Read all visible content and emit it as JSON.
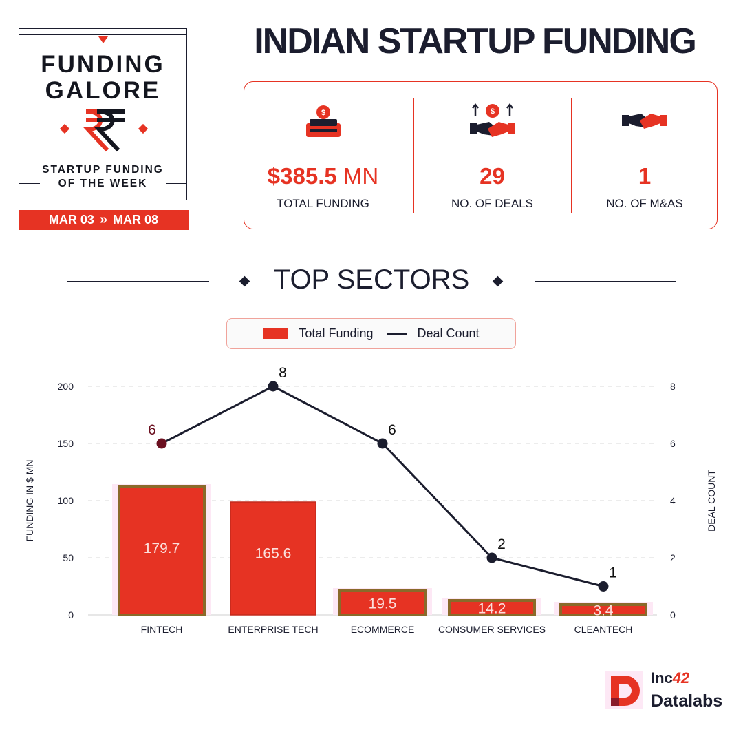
{
  "badge": {
    "title_line1": "FUNDING",
    "title_line2": "GALORE",
    "subtitle_line1": "STARTUP FUNDING",
    "subtitle_line2": "OF THE WEEK",
    "date_from": "MAR 03",
    "date_to": "MAR 08",
    "date_separator": "»"
  },
  "header": {
    "title": "INDIAN STARTUP FUNDING"
  },
  "stats": [
    {
      "value": "$385.5",
      "unit": " MN",
      "label": "TOTAL FUNDING",
      "icon": "money-box-icon"
    },
    {
      "value": "29",
      "unit": "",
      "label": "NO. OF DEALS",
      "icon": "deals-handshake-icon"
    },
    {
      "value": "1",
      "unit": "",
      "label": "NO. OF M&AS",
      "icon": "handshake-icon"
    }
  ],
  "section": {
    "title": "TOP SECTORS"
  },
  "legend": {
    "bar_label": "Total Funding",
    "line_label": "Deal Count"
  },
  "colors": {
    "accent": "#e63323",
    "dark": "#1b1d2e",
    "bar_border": "#8a6a2a"
  },
  "chart_data": {
    "type": "bar",
    "categories": [
      "FINTECH",
      "ENTERPRISE TECH",
      "ECOMMERCE",
      "CONSUMER SERVICES",
      "CLEANTECH"
    ],
    "series": [
      {
        "name": "Total Funding",
        "type": "bar",
        "axis": "left",
        "values": [
          179.7,
          165.6,
          19.5,
          14.2,
          3.4
        ],
        "display_heights": [
          186,
          164,
          35,
          21,
          15
        ]
      },
      {
        "name": "Deal Count",
        "type": "line",
        "axis": "right",
        "values": [
          6,
          8,
          6,
          2,
          1
        ]
      }
    ],
    "ylabel": "FUNDING IN $ MN",
    "y2label": "DEAL COUNT",
    "ylim": [
      0,
      200
    ],
    "y2lim": [
      0,
      8
    ],
    "yticks": [
      0,
      50,
      100,
      150,
      200
    ],
    "y2ticks": [
      0,
      2,
      4,
      6,
      8
    ],
    "grid": true,
    "legend_position": "top-center"
  },
  "footer": {
    "brand_line1": "Inc",
    "brand_line1_num": "42",
    "brand_line2": "Datalabs"
  }
}
